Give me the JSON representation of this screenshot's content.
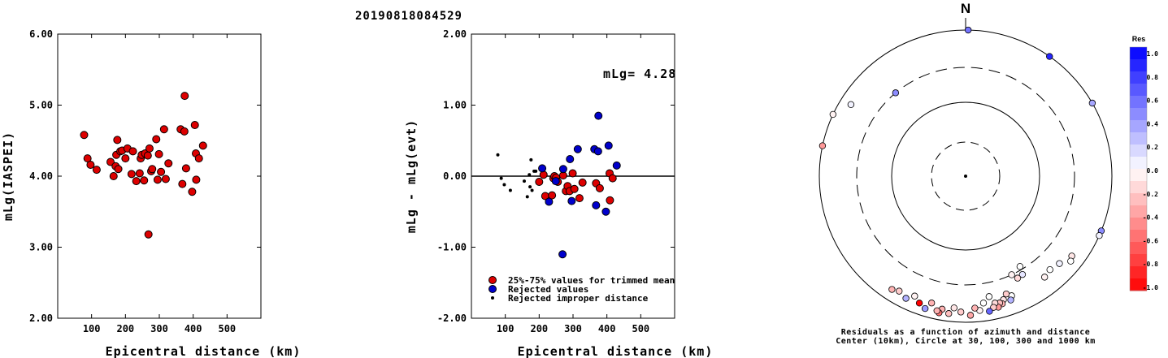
{
  "figure": {
    "title": "20190818084529"
  },
  "chart_data": [
    {
      "type": "scatter",
      "xlabel": "Epicentral distance (km)",
      "ylabel": "mLg(IASPEI)",
      "xlim": [
        0,
        600
      ],
      "ylim": [
        2.0,
        6.0
      ],
      "xticks": [
        "100",
        "200",
        "300",
        "400",
        "500"
      ],
      "yticks": [
        "2.00",
        "3.00",
        "4.00",
        "5.00",
        "6.00"
      ],
      "grid": false,
      "series": [
        {
          "marker_color": "#dd0000",
          "points": [
            [
              78,
              4.58
            ],
            [
              88,
              4.25
            ],
            [
              97,
              4.16
            ],
            [
              115,
              4.09
            ],
            [
              156,
              4.2
            ],
            [
              165,
              4.0
            ],
            [
              171,
              4.14
            ],
            [
              173,
              4.3
            ],
            [
              176,
              4.51
            ],
            [
              179,
              4.1
            ],
            [
              185,
              4.35
            ],
            [
              190,
              4.36
            ],
            [
              200,
              4.25
            ],
            [
              206,
              4.39
            ],
            [
              218,
              4.03
            ],
            [
              222,
              4.35
            ],
            [
              232,
              3.93
            ],
            [
              242,
              4.04
            ],
            [
              245,
              4.25
            ],
            [
              248,
              4.3
            ],
            [
              255,
              3.94
            ],
            [
              258,
              4.32
            ],
            [
              266,
              4.29
            ],
            [
              268,
              3.18
            ],
            [
              271,
              4.39
            ],
            [
              276,
              4.07
            ],
            [
              279,
              4.1
            ],
            [
              291,
              4.52
            ],
            [
              295,
              3.95
            ],
            [
              299,
              4.31
            ],
            [
              305,
              4.06
            ],
            [
              314,
              4.66
            ],
            [
              319,
              3.96
            ],
            [
              327,
              4.18
            ],
            [
              363,
              4.66
            ],
            [
              368,
              3.89
            ],
            [
              374,
              4.63
            ],
            [
              375,
              5.13
            ],
            [
              379,
              4.11
            ],
            [
              397,
              3.78
            ],
            [
              405,
              4.72
            ],
            [
              408,
              4.32
            ],
            [
              409,
              3.95
            ],
            [
              417,
              4.25
            ],
            [
              429,
              4.43
            ]
          ]
        }
      ]
    },
    {
      "type": "scatter",
      "xlabel": "Epicentral distance (km)",
      "ylabel": "mLg - mLg(evt)",
      "xlim": [
        0,
        600
      ],
      "ylim": [
        -2.0,
        2.0
      ],
      "xticks": [
        "100",
        "200",
        "300",
        "400",
        "500"
      ],
      "yticks": [
        "-2.00",
        "-1.00",
        "0.00",
        "1.00",
        "2.00"
      ],
      "annotation": "mLg= 4.28",
      "reference_line_y": 0,
      "legend": [
        "25%-75% values for trimmed mean",
        "Rejected values",
        "Rejected improper distance"
      ],
      "legend_position": "bottom-left",
      "series": [
        {
          "name": "25%-75% values for trimmed mean",
          "marker_color": "#dd0000",
          "points": [
            [
              200,
              -0.08
            ],
            [
              213,
              0.02
            ],
            [
              218,
              -0.28
            ],
            [
              238,
              -0.27
            ],
            [
              242,
              -0.03
            ],
            [
              245,
              0.0
            ],
            [
              250,
              -0.02
            ],
            [
              255,
              -0.08
            ],
            [
              271,
              0.01
            ],
            [
              279,
              -0.21
            ],
            [
              284,
              -0.14
            ],
            [
              290,
              -0.21
            ],
            [
              299,
              0.04
            ],
            [
              304,
              -0.18
            ],
            [
              319,
              -0.31
            ],
            [
              328,
              -0.09
            ],
            [
              368,
              -0.1
            ],
            [
              379,
              -0.17
            ],
            [
              408,
              0.04
            ],
            [
              409,
              -0.34
            ],
            [
              417,
              -0.03
            ]
          ]
        },
        {
          "name": "Rejected values",
          "marker_color": "#0000cc",
          "points": [
            [
              209,
              0.11
            ],
            [
              229,
              -0.36
            ],
            [
              249,
              -0.07
            ],
            [
              269,
              -1.1
            ],
            [
              271,
              0.1
            ],
            [
              291,
              0.24
            ],
            [
              296,
              -0.35
            ],
            [
              314,
              0.38
            ],
            [
              363,
              0.38
            ],
            [
              368,
              -0.41
            ],
            [
              374,
              0.35
            ],
            [
              375,
              0.85
            ],
            [
              397,
              -0.5
            ],
            [
              405,
              0.43
            ],
            [
              429,
              0.15
            ]
          ]
        },
        {
          "name": "Rejected improper distance",
          "marker_color": "#000000",
          "points": [
            [
              78,
              0.3
            ],
            [
              88,
              -0.03
            ],
            [
              97,
              -0.12
            ],
            [
              115,
              -0.2
            ],
            [
              156,
              -0.07
            ],
            [
              165,
              -0.29
            ],
            [
              171,
              0.02
            ],
            [
              173,
              -0.15
            ],
            [
              176,
              0.23
            ],
            [
              179,
              -0.2
            ],
            [
              185,
              0.07
            ],
            [
              190,
              0.07
            ]
          ]
        }
      ]
    },
    {
      "type": "scatter",
      "subtype": "polar",
      "north_label": "N",
      "caption_line1": "Residuals as a function of azimuth and distance",
      "caption_line2": "Center (10km), Circle at 30, 100, 300 and 1000 km",
      "colorbar": {
        "title": "Res",
        "ticks": [
          "1.0",
          "0.8",
          "0.6",
          "0.4",
          "0.2",
          "0.0",
          "-0.2",
          "-0.4",
          "-0.6",
          "-0.8",
          "-1.0"
        ],
        "max_color": "#0000ff",
        "mid_color": "#ffffff",
        "min_color": "#ff0000"
      },
      "stations": [
        {
          "az": 1,
          "dist": 1000,
          "res": 0.55
        },
        {
          "az": 35,
          "dist": 1000,
          "res": 0.85
        },
        {
          "az": 60,
          "dist": 1000,
          "res": 0.35
        },
        {
          "az": 295,
          "dist": 1000,
          "res": -0.05
        },
        {
          "az": 282,
          "dist": 1000,
          "res": -0.4
        },
        {
          "az": 302,
          "dist": 700,
          "res": 0.05
        },
        {
          "az": 320,
          "dist": 300,
          "res": 0.45
        },
        {
          "az": 112,
          "dist": 1000,
          "res": 0.45
        },
        {
          "az": 114,
          "dist": 1000,
          "res": 0.05
        },
        {
          "az": 127,
          "dist": 650,
          "res": -0.1
        },
        {
          "az": 129,
          "dist": 700,
          "res": 0.0
        },
        {
          "az": 133,
          "dist": 560,
          "res": 0.05
        },
        {
          "az": 138,
          "dist": 520,
          "res": 0.0
        },
        {
          "az": 142,
          "dist": 560,
          "res": -0.05
        },
        {
          "az": 149,
          "dist": 270,
          "res": 0.0
        },
        {
          "az": 150,
          "dist": 350,
          "res": 0.1
        },
        {
          "az": 153,
          "dist": 360,
          "res": -0.15
        },
        {
          "az": 155,
          "dist": 300,
          "res": -0.05
        },
        {
          "az": 159,
          "dist": 560,
          "res": 0.0
        },
        {
          "az": 160,
          "dist": 630,
          "res": 0.3
        },
        {
          "az": 161,
          "dist": 500,
          "res": -0.2
        },
        {
          "az": 163,
          "dist": 580,
          "res": -0.1
        },
        {
          "az": 164,
          "dist": 650,
          "res": -0.3
        },
        {
          "az": 165,
          "dist": 620,
          "res": -0.25
        },
        {
          "az": 166,
          "dist": 700,
          "res": -0.4
        },
        {
          "az": 167,
          "dist": 600,
          "res": -0.15
        },
        {
          "az": 168,
          "dist": 680,
          "res": -0.2
        },
        {
          "az": 169,
          "dist": 470,
          "res": 0.0
        },
        {
          "az": 170,
          "dist": 750,
          "res": 0.6
        },
        {
          "az": 172,
          "dist": 560,
          "res": 0.0
        },
        {
          "az": 174,
          "dist": 700,
          "res": -0.05
        },
        {
          "az": 176,
          "dist": 640,
          "res": -0.3
        },
        {
          "az": 178,
          "dist": 800,
          "res": -0.35
        },
        {
          "az": 182,
          "dist": 720,
          "res": -0.2
        },
        {
          "az": 185,
          "dist": 640,
          "res": -0.1
        },
        {
          "az": 187,
          "dist": 780,
          "res": -0.25
        },
        {
          "az": 190,
          "dist": 700,
          "res": -0.3
        },
        {
          "az": 191,
          "dist": 800,
          "res": -0.55
        },
        {
          "az": 192,
          "dist": 760,
          "res": -0.3
        },
        {
          "az": 195,
          "dist": 620,
          "res": -0.3
        },
        {
          "az": 197,
          "dist": 780,
          "res": 0.4
        },
        {
          "az": 200,
          "dist": 700,
          "res": -1.0
        },
        {
          "az": 203,
          "dist": 600,
          "res": -0.05
        },
        {
          "az": 206,
          "dist": 720,
          "res": 0.3
        },
        {
          "az": 210,
          "dist": 650,
          "res": -0.2
        },
        {
          "az": 213,
          "dist": 700,
          "res": -0.3
        }
      ]
    }
  ]
}
